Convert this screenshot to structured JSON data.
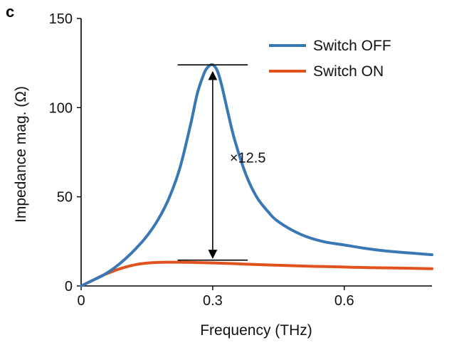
{
  "panel_label": "c",
  "chart_data": {
    "type": "line",
    "title": "",
    "xlabel": "Frequency (THz)",
    "ylabel": "Impedance mag. (Ω)",
    "xlim": [
      0,
      0.8
    ],
    "ylim": [
      0,
      150
    ],
    "xticks": [
      0,
      0.3,
      0.6
    ],
    "xtick_labels": [
      "0",
      "0.3",
      "0.6"
    ],
    "yticks": [
      0,
      50,
      100,
      150
    ],
    "ytick_labels": [
      "0",
      "50",
      "100",
      "150"
    ],
    "grid": false,
    "legend_position": "top-right",
    "series": [
      {
        "name": "Switch OFF",
        "color": "#3a78b5",
        "x": [
          0,
          0.025,
          0.05,
          0.075,
          0.1,
          0.125,
          0.15,
          0.175,
          0.2,
          0.225,
          0.25,
          0.265,
          0.28,
          0.29,
          0.3,
          0.31,
          0.32,
          0.335,
          0.35,
          0.375,
          0.4,
          0.425,
          0.45,
          0.5,
          0.55,
          0.6,
          0.65,
          0.7,
          0.75,
          0.8
        ],
        "y": [
          0,
          3,
          6,
          10,
          15,
          21,
          28,
          37,
          49,
          66,
          91,
          108,
          119,
          123,
          124,
          121,
          113,
          97,
          82,
          63,
          50,
          42,
          36,
          29,
          25,
          23,
          21,
          19.5,
          18.5,
          17.5
        ]
      },
      {
        "name": "Switch ON",
        "color": "#e0531f",
        "x": [
          0,
          0.025,
          0.05,
          0.075,
          0.1,
          0.125,
          0.15,
          0.175,
          0.2,
          0.225,
          0.25,
          0.3,
          0.35,
          0.4,
          0.45,
          0.5,
          0.55,
          0.6,
          0.65,
          0.7,
          0.75,
          0.8
        ],
        "y": [
          0,
          3,
          6,
          8.5,
          10.5,
          12,
          12.8,
          13.2,
          13.3,
          13.3,
          13.2,
          12.9,
          12.5,
          12,
          11.6,
          11.2,
          10.9,
          10.6,
          10.3,
          10.1,
          9.9,
          9.7
        ]
      }
    ],
    "annotations": [
      {
        "text": "×12.5",
        "x": 0.38,
        "y": 72
      }
    ],
    "reference_lines": {
      "peak_value": 124,
      "on_value": 14.5,
      "x_start": 0.22,
      "x_end": 0.38,
      "arrow_x": 0.3
    }
  }
}
